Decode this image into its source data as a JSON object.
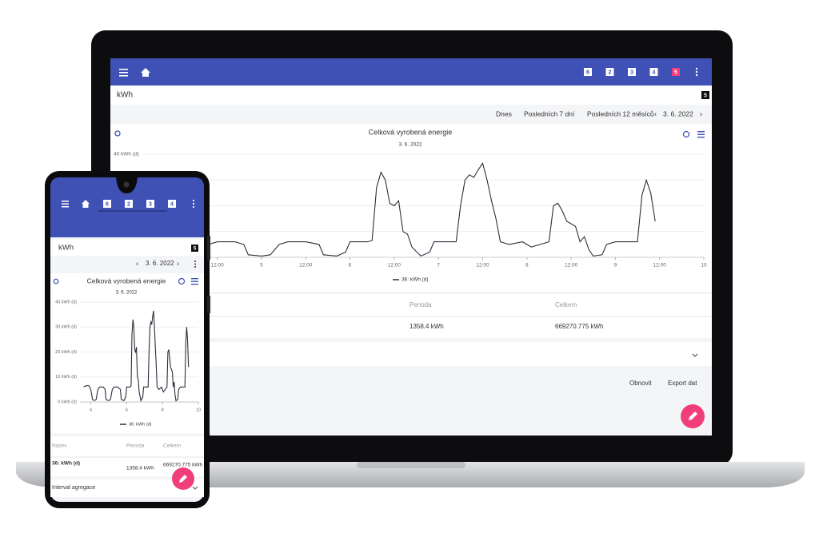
{
  "chart": {
    "type": "line",
    "series": {
      "name": "36: kWh (d)",
      "color": "#2b2f3a",
      "x": [
        3.6,
        3.75,
        3.9,
        4.0,
        4.1,
        4.2,
        4.3,
        4.4,
        4.5,
        4.7,
        4.8,
        4.85,
        5.0,
        5.1,
        5.2,
        5.3,
        5.5,
        5.65,
        5.7,
        5.85,
        5.95,
        6.0,
        6.2,
        6.25,
        6.3,
        6.35,
        6.4,
        6.45,
        6.5,
        6.55,
        6.6,
        6.65,
        6.7,
        6.8,
        6.9,
        6.95,
        7.2,
        7.25,
        7.3,
        7.35,
        7.4,
        7.45,
        7.5,
        7.55,
        7.6,
        7.65,
        7.7,
        7.8,
        7.95,
        8.0,
        8.05,
        8.25,
        8.3,
        8.35,
        8.4,
        8.45,
        8.55,
        8.6,
        8.65,
        8.7,
        8.75,
        8.85,
        8.9,
        9.0,
        9.25,
        9.3,
        9.35,
        9.4,
        9.45
      ],
      "values": [
        6,
        6.5,
        6.5,
        5,
        1,
        0.5,
        1,
        5,
        6,
        6,
        5,
        1,
        0.5,
        1,
        5,
        6,
        6,
        5,
        1,
        0.5,
        2,
        6,
        6,
        6.5,
        27,
        33,
        30,
        21,
        20,
        22,
        10,
        9,
        4,
        0.5,
        2,
        6,
        6,
        20,
        30,
        32,
        31,
        34,
        36.5,
        30,
        22,
        15,
        6,
        5,
        6,
        5,
        4,
        6,
        20,
        21,
        18,
        14,
        12,
        6,
        8,
        3,
        0.5,
        1,
        5,
        6,
        6,
        24,
        30,
        25,
        14
      ]
    }
  },
  "laptop": {
    "badges": [
      "6",
      "2",
      "3",
      "4",
      "5"
    ],
    "page_title": "kWh",
    "page_badge": "5",
    "ranges": [
      "Dnes",
      "Posledních 7 dní",
      "Posledních 12 měsíců"
    ],
    "date": "3. 6. 2022",
    "chart_title": "Celková vyrobená energie",
    "chart_subtitle": "3. 6. 2022",
    "xlim": [
      3.4,
      10
    ],
    "xticks": [
      4,
      {
        "value": 4.5,
        "label": "12:00"
      },
      5,
      {
        "value": 5.5,
        "label": "12:00"
      },
      6,
      {
        "value": 6.5,
        "label": "12:00"
      },
      7,
      {
        "value": 7.5,
        "label": "12:00"
      },
      8,
      {
        "value": 8.5,
        "label": "12:00"
      },
      9,
      {
        "value": 9.5,
        "label": "12:00"
      },
      10
    ],
    "ylim": [
      0,
      40
    ],
    "yticks": [
      {
        "value": 10,
        "label": "10 kWh (d)"
      },
      {
        "value": 20,
        "label": "20 kWh (d)"
      },
      {
        "value": 30,
        "label": "30 kWh (d)"
      },
      {
        "value": 40,
        "label": "40 kWh (d)"
      }
    ],
    "table_headers": [
      "Perioda",
      "Celkem"
    ],
    "table_row": [
      "1358.4 kWh",
      "669270.775 kWh"
    ],
    "buttons": [
      "Obnovit",
      "Export dat"
    ]
  },
  "phone": {
    "badges": [
      "6",
      "2",
      "3",
      "4"
    ],
    "page_title": "kWh",
    "page_badge": "5",
    "date": "3. 6. 2022",
    "chart_title": "Celková vyrobená energie",
    "chart_subtitle": "3. 6. 2022",
    "xlim": [
      3.4,
      10
    ],
    "xticks": [
      4,
      6,
      8,
      10
    ],
    "ylim": [
      0,
      40
    ],
    "yticks": [
      {
        "value": 0,
        "label": "0 kWh (d)"
      },
      {
        "value": 10,
        "label": "10 kWh (d)"
      },
      {
        "value": 20,
        "label": "20 kWh (d)"
      },
      {
        "value": 30,
        "label": "30 kWh (d)"
      },
      {
        "value": 40,
        "label": "40 kWh (d)"
      }
    ],
    "table_headers": [
      "Název",
      "Perioda",
      "Celkem"
    ],
    "table_row": [
      "36: kWh (d)",
      "1358.4 kWh",
      "669270.775 kWh"
    ],
    "accordion": "Interval agregace"
  }
}
